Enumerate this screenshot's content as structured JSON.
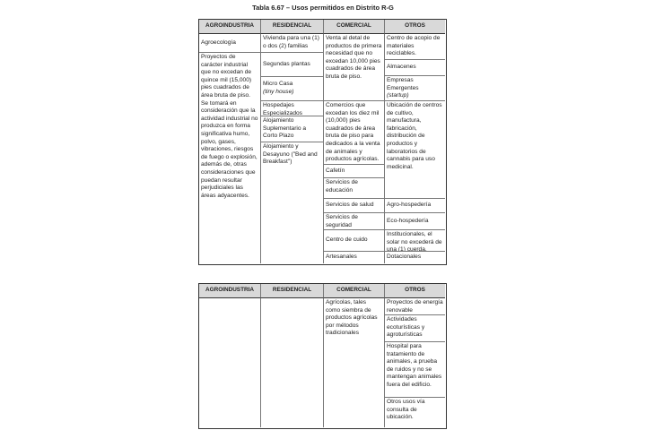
{
  "title": "Tabla 6.67 – Usos permitidos en Distrito R-G",
  "headers": [
    "AGROINDUSTRIA",
    "RESIDENCIAL",
    "COMERCIAL",
    "OTROS"
  ],
  "table1": {
    "agroindustria": [
      "Agroecología",
      "Proyectos de carácter industrial que no excedan de quince mil (15,000) pies cuadrados de área bruta de piso. Se tomará en consideración que la actividad industrial no produzca en forma significativa humo, polvo, gases, vibraciones, riesgos de fuego o explosión, además de, otras consideraciones que puedan resultar perjudiciales las áreas adyacentes."
    ],
    "residencial": [
      "Vivienda para una (1) o dos (2) familias",
      "Segundas plantas",
      "Micro Casa",
      "(tiny house)",
      "Hospedajes Especializados",
      "Alojamiento Suplementario a Corto Plazo",
      "Alojamiento y Desayuno (\"Bed and Breakfast\")"
    ],
    "comercial": [
      "Venta al detal de productos de primera necesidad que no excedan 10,000 pies cuadrados de área bruta de piso.",
      "Comercios que excedan los diez mil (10,000) pies cuadrados de área bruta de piso para dedicados a la venta de animales y productos agrícolas.",
      "Cafetín",
      "Servicios de educación",
      "Servicios de salud",
      "Servicios de seguridad",
      "Centro de cuido",
      "Artesanales"
    ],
    "otros": [
      "Centro de acopio de materiales reciclables.",
      "Almacenes",
      "Empresas Emergentes",
      "(startup)",
      "Ubicación de centros de cultivo, manufactura, fabricación, distribución de productos y laboratorios de cannabis para uso medicinal.",
      "Agro-hospedería",
      "Eco-hospedería",
      "Institucionales, el solar no excederá de una (1) cuerda.",
      "Dotacionales"
    ]
  },
  "table2": {
    "comercial": [
      "Agrícolas, tales como siembra de productos agrícolas por métodos tradicionales"
    ],
    "otros": [
      "Proyectos de energía renovable",
      "Actividades ecoturísticas y agroturísticas",
      "Hospital para tratamiento de animales, a prueba de ruidos y no se mantengan animales fuera del edificio.",
      "Otros usos vía consulta de ubicación."
    ]
  }
}
